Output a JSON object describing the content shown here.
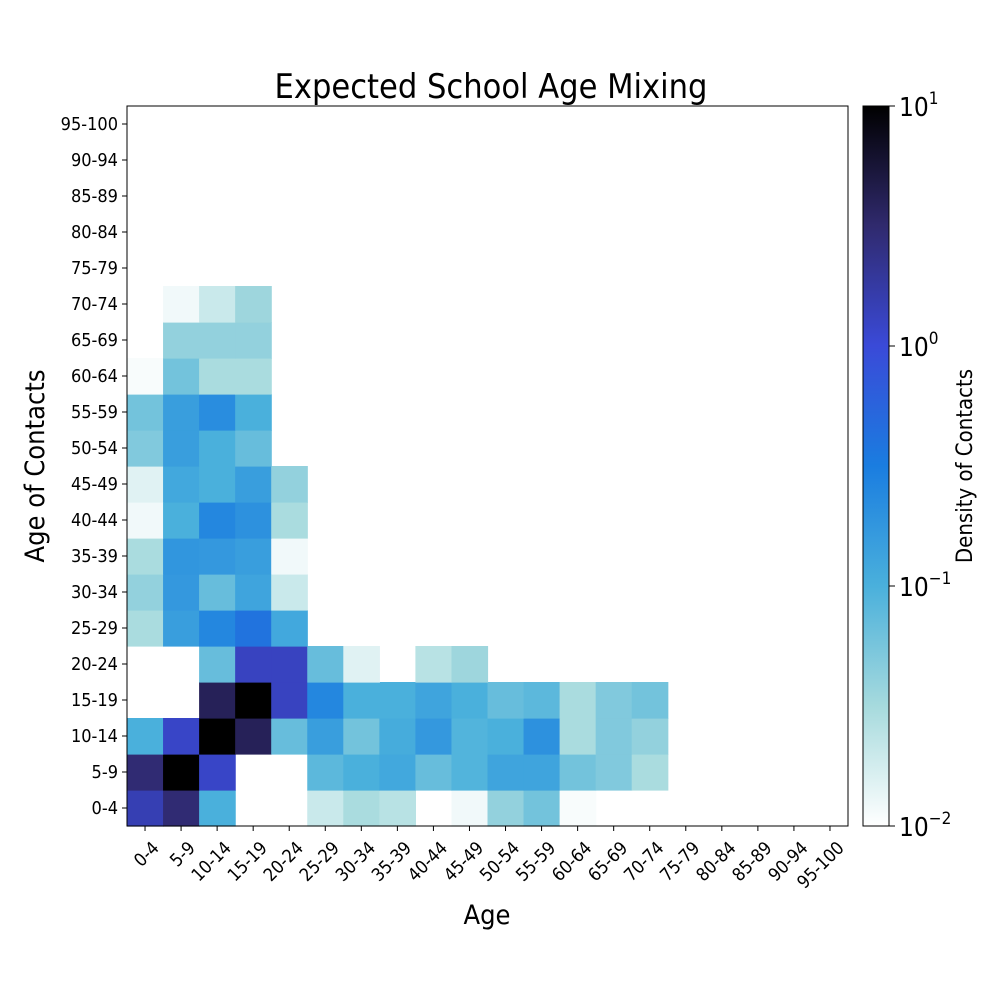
{
  "chart_data": {
    "type": "heatmap",
    "title": "Expected School Age Mixing",
    "xlabel": "Age",
    "ylabel": "Age of Contacts",
    "x_categories": [
      "0-4",
      "5-9",
      "10-14",
      "15-19",
      "20-24",
      "25-29",
      "30-34",
      "35-39",
      "40-44",
      "45-49",
      "50-54",
      "55-59",
      "60-64",
      "65-69",
      "70-74",
      "75-79",
      "80-84",
      "85-89",
      "90-94",
      "95-100"
    ],
    "y_categories": [
      "0-4",
      "5-9",
      "10-14",
      "15-19",
      "20-24",
      "25-29",
      "30-34",
      "35-39",
      "40-44",
      "45-49",
      "50-54",
      "55-59",
      "60-64",
      "65-69",
      "70-74",
      "75-79",
      "80-84",
      "85-89",
      "90-94",
      "95-100"
    ],
    "value_note": "rows indexed by Age of Contacts (0-4 first), columns by Age; null = below color scale (white)",
    "values": [
      [
        1.5,
        3.0,
        0.1,
        null,
        null,
        0.02,
        0.03,
        0.025,
        null,
        0.012,
        0.04,
        0.06,
        0.011,
        null,
        null,
        null,
        null,
        null,
        null,
        null
      ],
      [
        3.0,
        10.0,
        1.2,
        null,
        null,
        0.08,
        0.1,
        0.12,
        0.07,
        0.09,
        0.13,
        0.13,
        0.06,
        0.05,
        0.03,
        null,
        null,
        null,
        null,
        null
      ],
      [
        0.1,
        1.2,
        10.0,
        4.0,
        0.07,
        0.15,
        0.06,
        0.11,
        0.17,
        0.09,
        0.1,
        0.2,
        0.03,
        0.05,
        0.04,
        null,
        null,
        null,
        null,
        null
      ],
      [
        null,
        null,
        4.0,
        10.0,
        1.3,
        0.25,
        0.1,
        0.1,
        0.13,
        0.1,
        0.07,
        0.08,
        0.03,
        0.05,
        0.06,
        null,
        null,
        null,
        null,
        null
      ],
      [
        null,
        null,
        0.07,
        1.3,
        1.3,
        0.07,
        0.015,
        null,
        0.025,
        0.035,
        null,
        null,
        null,
        null,
        null,
        null,
        null,
        null,
        null,
        null
      ],
      [
        0.03,
        0.15,
        0.25,
        0.4,
        0.12,
        null,
        null,
        null,
        null,
        null,
        null,
        null,
        null,
        null,
        null,
        null,
        null,
        null,
        null,
        null
      ],
      [
        0.04,
        0.17,
        0.07,
        0.13,
        0.02,
        null,
        null,
        null,
        null,
        null,
        null,
        null,
        null,
        null,
        null,
        null,
        null,
        null,
        null,
        null
      ],
      [
        0.03,
        0.18,
        0.17,
        0.15,
        0.012,
        null,
        null,
        null,
        null,
        null,
        null,
        null,
        null,
        null,
        null,
        null,
        null,
        null,
        null,
        null
      ],
      [
        0.012,
        0.1,
        0.25,
        0.2,
        0.03,
        null,
        null,
        null,
        null,
        null,
        null,
        null,
        null,
        null,
        null,
        null,
        null,
        null,
        null,
        null
      ],
      [
        0.015,
        0.12,
        0.1,
        0.15,
        0.04,
        null,
        null,
        null,
        null,
        null,
        null,
        null,
        null,
        null,
        null,
        null,
        null,
        null,
        null,
        null
      ],
      [
        0.05,
        0.15,
        0.1,
        0.07,
        null,
        null,
        null,
        null,
        null,
        null,
        null,
        null,
        null,
        null,
        null,
        null,
        null,
        null,
        null,
        null
      ],
      [
        0.06,
        0.15,
        0.22,
        0.1,
        null,
        null,
        null,
        null,
        null,
        null,
        null,
        null,
        null,
        null,
        null,
        null,
        null,
        null,
        null,
        null
      ],
      [
        0.011,
        0.06,
        0.03,
        0.03,
        null,
        null,
        null,
        null,
        null,
        null,
        null,
        null,
        null,
        null,
        null,
        null,
        null,
        null,
        null,
        null
      ],
      [
        null,
        0.04,
        0.04,
        0.04,
        null,
        null,
        null,
        null,
        null,
        null,
        null,
        null,
        null,
        null,
        null,
        null,
        null,
        null,
        null,
        null
      ],
      [
        null,
        0.012,
        0.02,
        0.035,
        null,
        null,
        null,
        null,
        null,
        null,
        null,
        null,
        null,
        null,
        null,
        null,
        null,
        null,
        null,
        null
      ],
      [
        null,
        null,
        null,
        null,
        null,
        null,
        null,
        null,
        null,
        null,
        null,
        null,
        null,
        null,
        null,
        null,
        null,
        null,
        null,
        null
      ],
      [
        null,
        null,
        null,
        null,
        null,
        null,
        null,
        null,
        null,
        null,
        null,
        null,
        null,
        null,
        null,
        null,
        null,
        null,
        null,
        null
      ],
      [
        null,
        null,
        null,
        null,
        null,
        null,
        null,
        null,
        null,
        null,
        null,
        null,
        null,
        null,
        null,
        null,
        null,
        null,
        null,
        null
      ],
      [
        null,
        null,
        null,
        null,
        null,
        null,
        null,
        null,
        null,
        null,
        null,
        null,
        null,
        null,
        null,
        null,
        null,
        null,
        null,
        null
      ],
      [
        null,
        null,
        null,
        null,
        null,
        null,
        null,
        null,
        null,
        null,
        null,
        null,
        null,
        null,
        null,
        null,
        null,
        null,
        null,
        null
      ]
    ],
    "color_scale": "log",
    "vmin": 0.01,
    "vmax": 10,
    "colorbar": {
      "label": "Density of Contacts",
      "ticks": [
        {
          "base": "10",
          "exp": "1",
          "value": 10
        },
        {
          "base": "10",
          "exp": "0",
          "value": 1
        },
        {
          "base": "10",
          "exp": "−1",
          "value": 0.1
        },
        {
          "base": "10",
          "exp": "−2",
          "value": 0.01
        }
      ],
      "colormap": [
        "#ffffff",
        "#a6dadd",
        "#4ab0dc",
        "#1a7de0",
        "#3a4ad8",
        "#302a6e",
        "#000000"
      ]
    },
    "grid": false,
    "legend": "colorbar right"
  }
}
